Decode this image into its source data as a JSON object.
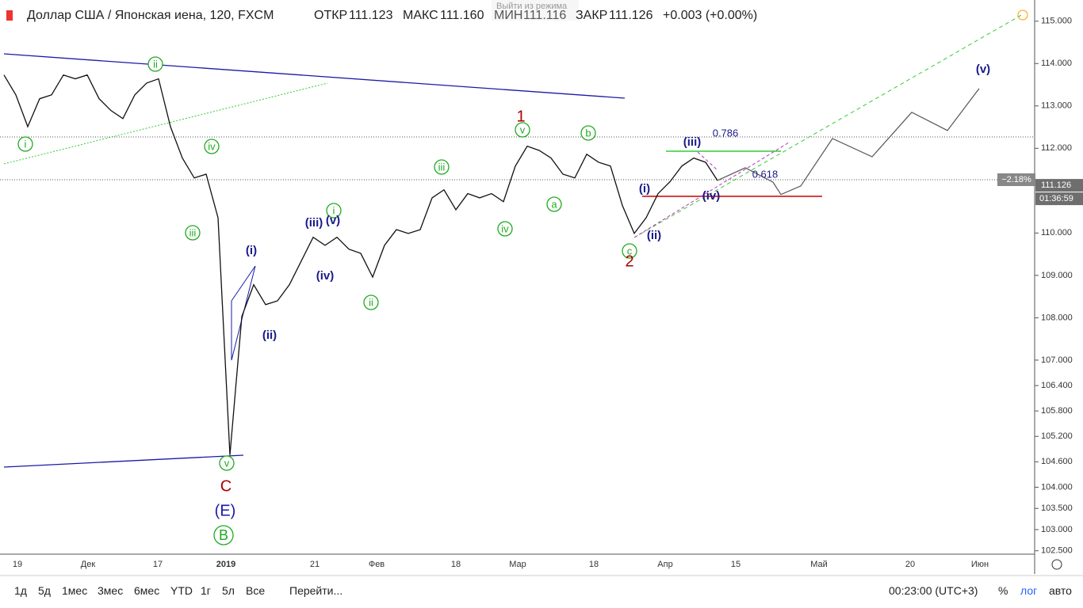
{
  "header": {
    "symbol": "Доллар США / Японская иена, 120, FXCM",
    "open_label": "ОТКР",
    "open": "111.123",
    "high_label": "МАКС",
    "high": "111.160",
    "low_label": "МИН",
    "low": "111.116",
    "close_label": "ЗАКР",
    "close": "111.126",
    "change": "+0.003 (+0.00%)",
    "overlay": "Выйти из режима"
  },
  "chart": {
    "type": "line",
    "ylim": [
      102.42,
      115.5
    ],
    "yticks": [
      {
        "value": 115,
        "label": "115.000"
      },
      {
        "value": 114,
        "label": "114.000"
      },
      {
        "value": 113,
        "label": "113.000"
      },
      {
        "value": 112,
        "label": "112.000"
      },
      {
        "value": 110,
        "label": "110.000"
      },
      {
        "value": 109,
        "label": "109.000"
      },
      {
        "value": 108,
        "label": "108.000"
      },
      {
        "value": 107,
        "label": "107.000"
      },
      {
        "value": 106.4,
        "label": "106.400"
      },
      {
        "value": 105.8,
        "label": "105.800"
      },
      {
        "value": 105.2,
        "label": "105.200"
      },
      {
        "value": 104.6,
        "label": "104.600"
      },
      {
        "value": 104,
        "label": "104.000"
      },
      {
        "value": 103.5,
        "label": "103.500"
      },
      {
        "value": 103,
        "label": "103.000"
      },
      {
        "value": 102.5,
        "label": "102.500"
      }
    ],
    "last_price": 111.126,
    "last_change": "−2.18%",
    "countdown": "01:36:59",
    "price": {
      "color": "#111111",
      "values": [
        113.73,
        113.26,
        112.51,
        113.17,
        113.26,
        113.73,
        113.64,
        113.73,
        113.17,
        112.89,
        112.7,
        113.26,
        113.54,
        113.64,
        112.51,
        111.77,
        111.3,
        111.39,
        110.36,
        104.76,
        108.03,
        108.78,
        108.31,
        108.4,
        108.78,
        109.34,
        109.9,
        109.71,
        109.9,
        109.62,
        109.52,
        108.96,
        109.71,
        110.08,
        109.99,
        110.08,
        110.83,
        111.02,
        110.55,
        110.93,
        110.83,
        110.93,
        110.74,
        111.58,
        112.05,
        111.95,
        111.77,
        111.39,
        111.3,
        111.86,
        111.67,
        111.58,
        110.65,
        109.99,
        110.36,
        110.93,
        111.21,
        111.58,
        111.77,
        111.67,
        111.24
      ]
    },
    "projection": {
      "color": "#555555",
      "values": [
        111.24,
        111.54,
        111.2,
        110.91,
        111.11,
        112.23,
        111.8,
        112.85,
        112.42,
        113.41
      ]
    },
    "time_labels": [
      "19",
      "Дек",
      "17",
      "2019",
      "21",
      "Фев",
      "18",
      "Мар",
      "18",
      "Апр",
      "15",
      "Май",
      "20",
      "Июн"
    ],
    "annotations": [
      "i",
      "ii",
      "iv",
      "iii",
      "v",
      "i",
      "ii",
      "iii",
      "iv",
      "v",
      "a",
      "b",
      "c",
      "B",
      "(i)",
      "(ii)",
      "(iii)",
      "(v)",
      "(iv)",
      "(i)",
      "(ii)",
      "(iii)",
      "(iv)",
      "(v)",
      "(E)",
      "1",
      "2",
      "C",
      "0.786",
      "0.618"
    ]
  },
  "toolbar": {
    "ranges": [
      "1д",
      "5д",
      "1мес",
      "3мес",
      "6мес",
      "YTD",
      "1г",
      "5л",
      "Все"
    ],
    "goto": "Перейти...",
    "time": "00:23:00 (UTC+3)",
    "percent": "%",
    "log": "лог",
    "auto": "авто"
  }
}
